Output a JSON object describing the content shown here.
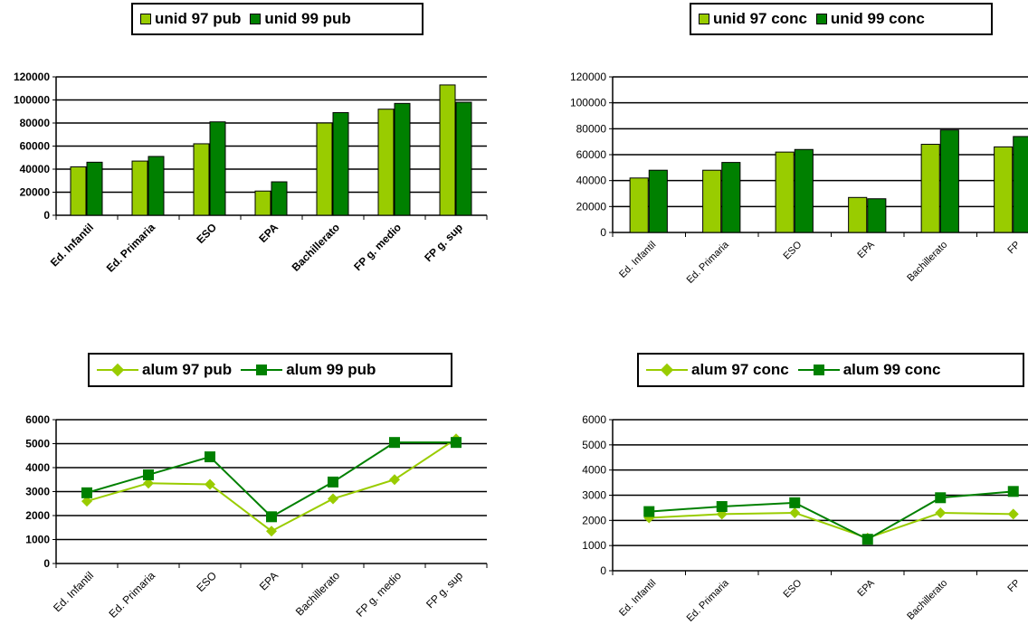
{
  "colors": {
    "light": "#99cc00",
    "dark": "#008000"
  },
  "chart_data": [
    {
      "id": "c1",
      "type": "bar",
      "categories": [
        "Ed. Infantil",
        "Ed. Primaria",
        "ESO",
        "EPA",
        "Bachillerato",
        "FP g. medio",
        "FP g. sup"
      ],
      "series": [
        {
          "name": "unid 97 pub",
          "values": [
            42000,
            47000,
            62000,
            21000,
            80000,
            92000,
            113000
          ]
        },
        {
          "name": "unid 99 pub",
          "values": [
            46000,
            51000,
            81000,
            29000,
            89000,
            97000,
            98000
          ]
        }
      ],
      "ylim": [
        0,
        120000
      ],
      "yticks": [
        "0",
        "20000",
        "40000",
        "60000",
        "80000",
        "100000",
        "120000"
      ],
      "grid": true,
      "legend": "top"
    },
    {
      "id": "c2",
      "type": "bar",
      "categories": [
        "Ed. Infantil",
        "Ed. Primaria",
        "ESO",
        "EPA",
        "Bachillerato",
        "FP"
      ],
      "series": [
        {
          "name": "unid 97 conc",
          "values": [
            42000,
            48000,
            62000,
            27000,
            68000,
            66000
          ]
        },
        {
          "name": "unid 99 conc",
          "values": [
            48000,
            54000,
            64000,
            26000,
            79000,
            74000
          ]
        }
      ],
      "ylim": [
        0,
        120000
      ],
      "yticks": [
        "0",
        "20000",
        "40000",
        "60000",
        "80000",
        "100000",
        "120000"
      ],
      "grid": true,
      "legend": "top"
    },
    {
      "id": "c3",
      "type": "line",
      "categories": [
        "Ed. Infantil",
        "Ed. Primaria",
        "ESO",
        "EPA",
        "Bachillerato",
        "FP g. medio",
        "FP g. sup"
      ],
      "series": [
        {
          "name": "alum 97 pub",
          "values": [
            2600,
            3350,
            3300,
            1350,
            2700,
            3500,
            5200
          ]
        },
        {
          "name": "alum 99 pub",
          "values": [
            2950,
            3700,
            4450,
            1950,
            3400,
            5050,
            5050
          ]
        }
      ],
      "ylim": [
        0,
        6000
      ],
      "yticks": [
        "0",
        "1000",
        "2000",
        "3000",
        "4000",
        "5000",
        "6000"
      ],
      "grid": true,
      "legend": "top"
    },
    {
      "id": "c4",
      "type": "line",
      "categories": [
        "Ed. Infantil",
        "Ed. Primaria",
        "ESO",
        "EPA",
        "Bachillerato",
        "FP"
      ],
      "series": [
        {
          "name": "alum 97 conc",
          "values": [
            2100,
            2250,
            2300,
            1300,
            2300,
            2250
          ]
        },
        {
          "name": "alum 99 conc",
          "values": [
            2350,
            2550,
            2700,
            1250,
            2900,
            3150
          ]
        }
      ],
      "ylim": [
        0,
        6000
      ],
      "yticks": [
        "0",
        "1000",
        "2000",
        "3000",
        "4000",
        "5000",
        "6000"
      ],
      "grid": true,
      "legend": "top"
    }
  ]
}
